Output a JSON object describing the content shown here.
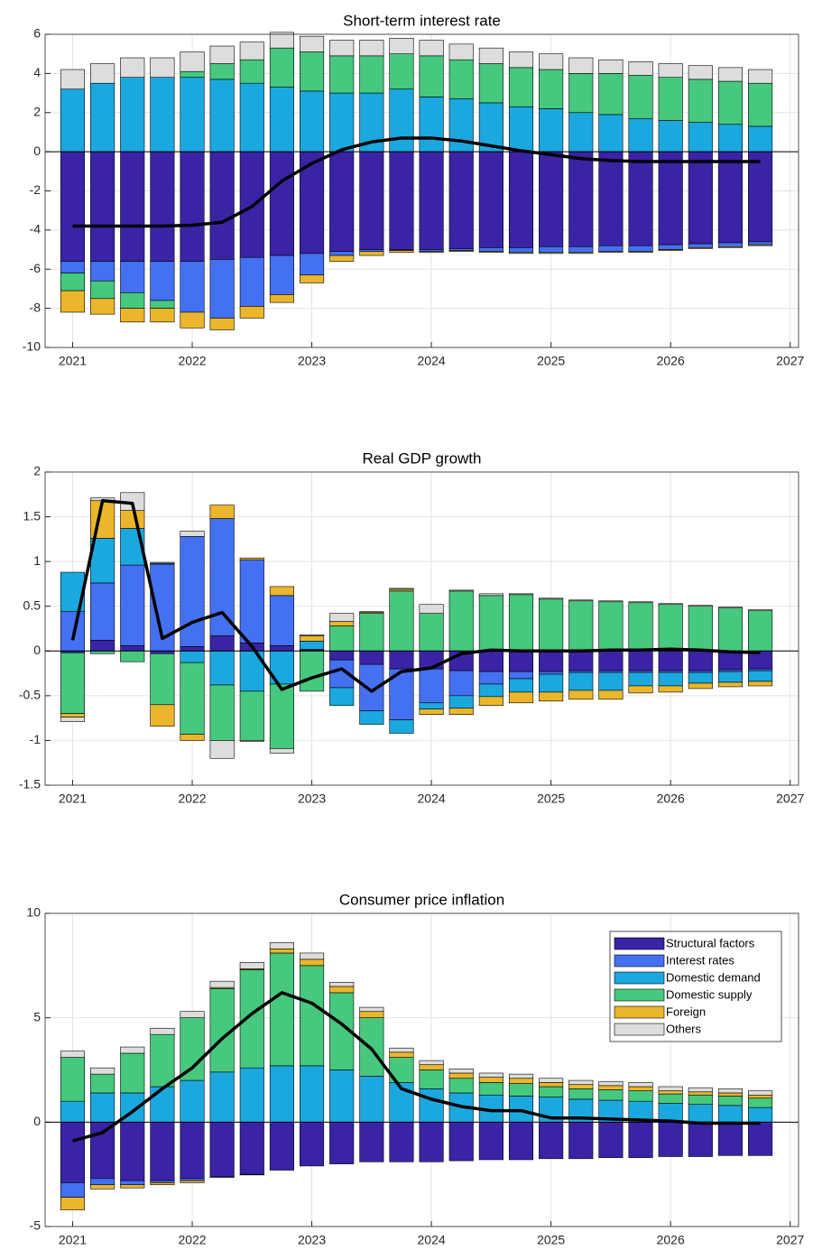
{
  "chart_data": [
    {
      "type": "bar",
      "stacked": true,
      "title": "Short-term interest rate",
      "x": [
        2021,
        2021.25,
        2021.5,
        2021.75,
        2022,
        2022.25,
        2022.5,
        2022.75,
        2023,
        2023.25,
        2023.5,
        2023.75,
        2024,
        2024.25,
        2024.5,
        2024.75,
        2025,
        2025.25,
        2025.5,
        2025.75,
        2026,
        2026.25,
        2026.5,
        2026.75
      ],
      "series": [
        {
          "color": "#3b23a6",
          "values": [
            -5.6,
            -5.6,
            -5.6,
            -5.6,
            -5.6,
            -5.5,
            -5.4,
            -5.3,
            -5.2,
            -5.1,
            -5.0,
            -5.0,
            -5.0,
            -4.95,
            -4.9,
            -4.9,
            -4.85,
            -4.85,
            -4.8,
            -4.8,
            -4.75,
            -4.7,
            -4.65,
            -4.6
          ]
        },
        {
          "color": "#4470f2",
          "values": [
            -0.6,
            -1.0,
            -1.6,
            -2.0,
            -2.6,
            -3.0,
            -2.5,
            -2.0,
            -1.1,
            -0.2,
            -0.1,
            -0.05,
            -0.1,
            -0.1,
            -0.2,
            -0.25,
            -0.3,
            -0.3,
            -0.3,
            -0.3,
            -0.25,
            -0.2,
            -0.2,
            -0.15
          ]
        },
        {
          "color": "#1ba8df",
          "values": [
            3.2,
            3.5,
            3.8,
            3.8,
            3.8,
            3.7,
            3.5,
            3.3,
            3.1,
            3.0,
            3.0,
            3.2,
            2.8,
            2.7,
            2.5,
            2.3,
            2.2,
            2.0,
            1.9,
            1.7,
            1.6,
            1.5,
            1.4,
            1.3
          ]
        },
        {
          "color": "#46c87e",
          "values": [
            -0.9,
            -0.9,
            -0.8,
            -0.4,
            0.3,
            0.8,
            1.2,
            2.0,
            2.0,
            1.9,
            1.9,
            1.8,
            2.1,
            2.0,
            2.0,
            2.0,
            2.0,
            2.0,
            2.1,
            2.2,
            2.2,
            2.2,
            2.2,
            2.2
          ]
        },
        {
          "color": "#ebb62b",
          "values": [
            -1.1,
            -0.8,
            -0.7,
            -0.7,
            -0.8,
            -0.6,
            -0.6,
            -0.4,
            -0.4,
            -0.3,
            -0.2,
            -0.1,
            -0.05,
            -0.05,
            -0.05,
            -0.05,
            -0.05,
            -0.05,
            -0.05,
            -0.05,
            -0.05,
            -0.05,
            -0.05,
            -0.05
          ]
        },
        {
          "color": "#dddddd",
          "values": [
            1.0,
            1.0,
            1.0,
            1.0,
            1.0,
            0.9,
            0.9,
            0.8,
            0.8,
            0.8,
            0.8,
            0.8,
            0.8,
            0.8,
            0.8,
            0.8,
            0.8,
            0.8,
            0.7,
            0.7,
            0.7,
            0.7,
            0.7,
            0.7
          ]
        }
      ],
      "line": {
        "color": "#000000",
        "values": [
          -3.8,
          -3.8,
          -3.8,
          -3.8,
          -3.75,
          -3.6,
          -2.8,
          -1.5,
          -0.6,
          0.1,
          0.5,
          0.7,
          0.7,
          0.55,
          0.3,
          0.05,
          -0.15,
          -0.35,
          -0.45,
          -0.5,
          -0.5,
          -0.5,
          -0.5,
          -0.5
        ]
      },
      "xlim": [
        2020.77,
        2027.07
      ],
      "xticks": [
        2021,
        2022,
        2023,
        2024,
        2025,
        2026,
        2027
      ],
      "ylim": [
        -10,
        6
      ],
      "yticks": [
        -10,
        -8,
        -6,
        -4,
        -2,
        0,
        2,
        4,
        6
      ],
      "grid": true
    },
    {
      "type": "bar",
      "stacked": true,
      "title": "Real GDP growth",
      "x": [
        2021,
        2021.25,
        2021.5,
        2021.75,
        2022,
        2022.25,
        2022.5,
        2022.75,
        2023,
        2023.25,
        2023.5,
        2023.75,
        2024,
        2024.25,
        2024.5,
        2024.75,
        2025,
        2025.25,
        2025.5,
        2025.75,
        2026,
        2026.25,
        2026.5,
        2026.75
      ],
      "series": [
        {
          "color": "#3b23a6",
          "values": [
            -0.02,
            0.12,
            0.06,
            -0.03,
            0.05,
            0.17,
            0.09,
            0.06,
            0.01,
            -0.1,
            -0.15,
            -0.2,
            -0.2,
            -0.22,
            -0.23,
            -0.23,
            -0.23,
            -0.22,
            -0.22,
            -0.22,
            -0.22,
            -0.22,
            -0.21,
            -0.2
          ]
        },
        {
          "color": "#4470f2",
          "values": [
            0.44,
            0.64,
            0.9,
            0.97,
            1.23,
            1.31,
            0.93,
            0.56,
            0.01,
            -0.31,
            -0.52,
            -0.57,
            -0.38,
            -0.28,
            -0.14,
            -0.08,
            -0.03,
            -0.02,
            -0.02,
            -0.02,
            -0.02,
            -0.02,
            -0.02,
            -0.02
          ]
        },
        {
          "color": "#1ba8df",
          "values": [
            0.44,
            0.5,
            0.41,
            0.01,
            -0.13,
            -0.38,
            -0.45,
            -0.37,
            0.09,
            -0.2,
            -0.15,
            -0.15,
            -0.07,
            -0.14,
            -0.14,
            -0.15,
            -0.2,
            -0.2,
            -0.2,
            -0.15,
            -0.15,
            -0.12,
            -0.12,
            -0.12
          ]
        },
        {
          "color": "#46c87e",
          "values": [
            -0.68,
            -0.03,
            -0.12,
            -0.57,
            -0.8,
            -0.62,
            -0.55,
            -0.72,
            -0.45,
            0.28,
            0.42,
            0.67,
            0.42,
            0.67,
            0.62,
            0.63,
            0.58,
            0.56,
            0.55,
            0.54,
            0.52,
            0.5,
            0.48,
            0.45
          ]
        },
        {
          "color": "#ebb62b",
          "values": [
            -0.04,
            0.42,
            0.2,
            -0.24,
            -0.07,
            0.15,
            0.02,
            0.1,
            0.06,
            0.05,
            0.01,
            0.02,
            -0.06,
            -0.07,
            -0.1,
            -0.12,
            -0.1,
            -0.1,
            -0.1,
            -0.08,
            -0.07,
            -0.06,
            -0.05,
            -0.05
          ]
        },
        {
          "color": "#dddddd",
          "values": [
            -0.05,
            0.03,
            0.2,
            0.01,
            0.06,
            -0.2,
            -0.01,
            -0.05,
            0.01,
            0.09,
            0.01,
            0.01,
            0.1,
            0.01,
            0.02,
            0.01,
            0.01,
            0.01,
            0.01,
            0.01,
            0.01,
            0.01,
            0.01,
            0.01
          ]
        }
      ],
      "line": {
        "color": "#000000",
        "values": [
          0.12,
          1.68,
          1.65,
          0.14,
          0.32,
          0.43,
          0.05,
          -0.43,
          -0.3,
          -0.2,
          -0.45,
          -0.23,
          -0.19,
          -0.03,
          0.01,
          0.0,
          0.0,
          0.0,
          0.01,
          0.01,
          0.02,
          0.01,
          -0.01,
          -0.02
        ]
      },
      "xlim": [
        2020.77,
        2027.07
      ],
      "xticks": [
        2021,
        2022,
        2023,
        2024,
        2025,
        2026,
        2027
      ],
      "ylim": [
        -1.5,
        2
      ],
      "yticks": [
        -1.5,
        -1,
        -0.5,
        0,
        0.5,
        1,
        1.5,
        2
      ],
      "grid": true
    },
    {
      "type": "bar",
      "stacked": true,
      "title": "Consumer price inflation",
      "x": [
        2021,
        2021.25,
        2021.5,
        2021.75,
        2022,
        2022.25,
        2022.5,
        2022.75,
        2023,
        2023.25,
        2023.5,
        2023.75,
        2024,
        2024.25,
        2024.5,
        2024.75,
        2025,
        2025.25,
        2025.5,
        2025.75,
        2026,
        2026.25,
        2026.5,
        2026.75
      ],
      "series": [
        {
          "name": "Structural factors",
          "color": "#3b23a6",
          "values": [
            -2.9,
            -2.7,
            -2.8,
            -2.8,
            -2.7,
            -2.6,
            -2.5,
            -2.3,
            -2.1,
            -2.0,
            -1.9,
            -1.9,
            -1.9,
            -1.85,
            -1.8,
            -1.8,
            -1.75,
            -1.75,
            -1.7,
            -1.7,
            -1.65,
            -1.65,
            -1.6,
            -1.6
          ]
        },
        {
          "name": "Interest rates",
          "color": "#4470f2",
          "values": [
            -0.7,
            -0.3,
            -0.2,
            -0.1,
            -0.1,
            -0.05,
            -0.03,
            0,
            0,
            0,
            0,
            0,
            0,
            0,
            0,
            0,
            0,
            0,
            0,
            0,
            0,
            0,
            0,
            0
          ]
        },
        {
          "name": "Domestic demand",
          "color": "#1ba8df",
          "values": [
            1.0,
            1.4,
            1.4,
            1.7,
            2.0,
            2.4,
            2.6,
            2.7,
            2.7,
            2.5,
            2.2,
            1.9,
            1.6,
            1.4,
            1.3,
            1.25,
            1.2,
            1.1,
            1.05,
            1.0,
            0.9,
            0.85,
            0.8,
            0.7
          ]
        },
        {
          "name": "Domestic supply",
          "color": "#46c87e",
          "values": [
            2.1,
            0.9,
            1.9,
            2.5,
            3.0,
            4.0,
            4.7,
            5.4,
            4.8,
            3.7,
            2.8,
            1.2,
            0.9,
            0.7,
            0.6,
            0.6,
            0.5,
            0.5,
            0.5,
            0.5,
            0.45,
            0.45,
            0.45,
            0.45
          ]
        },
        {
          "name": "Foreign",
          "color": "#ebb62b",
          "values": [
            -0.6,
            -0.2,
            -0.15,
            -0.1,
            -0.1,
            0.05,
            0.05,
            0.2,
            0.3,
            0.3,
            0.3,
            0.25,
            0.25,
            0.25,
            0.25,
            0.25,
            0.2,
            0.2,
            0.2,
            0.2,
            0.15,
            0.15,
            0.15,
            0.15
          ]
        },
        {
          "name": "Others",
          "color": "#dddddd",
          "values": [
            0.3,
            0.3,
            0.3,
            0.3,
            0.3,
            0.3,
            0.3,
            0.3,
            0.3,
            0.2,
            0.2,
            0.2,
            0.2,
            0.2,
            0.2,
            0.2,
            0.2,
            0.2,
            0.2,
            0.2,
            0.2,
            0.2,
            0.2,
            0.2
          ]
        }
      ],
      "line": {
        "color": "#000000",
        "values": [
          -0.9,
          -0.5,
          0.5,
          1.6,
          2.6,
          4.0,
          5.2,
          6.2,
          5.7,
          4.7,
          3.5,
          1.6,
          1.1,
          0.75,
          0.55,
          0.55,
          0.2,
          0.2,
          0.15,
          0.1,
          0.05,
          -0.05,
          -0.05,
          -0.05
        ]
      },
      "xlim": [
        2020.77,
        2027.07
      ],
      "xticks": [
        2021,
        2022,
        2023,
        2024,
        2025,
        2026,
        2027
      ],
      "ylim": [
        -5,
        10
      ],
      "yticks": [
        -5,
        0,
        5,
        10
      ],
      "grid": true,
      "legend": "upper right"
    }
  ]
}
